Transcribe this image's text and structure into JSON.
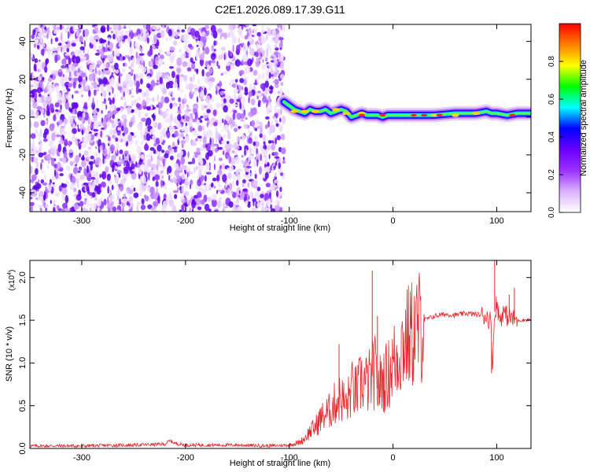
{
  "figure_title": "C2E1.2026.089.17.39.G11",
  "chart_data": [
    {
      "type": "heatmap",
      "xlabel": "Height of straight line (km)",
      "ylabel": "Frequency (Hz)",
      "xlim": [
        -350,
        133
      ],
      "ylim": [
        -50,
        49
      ],
      "xticks": [
        -300,
        -200,
        -100,
        0,
        100
      ],
      "yticks": [
        -40,
        -20,
        0,
        20,
        40
      ],
      "noise_region_x": [
        -350,
        -105
      ],
      "signal_ridge": {
        "x": [
          -105,
          -100,
          -95,
          -90,
          -85,
          -80,
          -75,
          -70,
          -65,
          -60,
          -55,
          -50,
          -45,
          -40,
          -35,
          -30,
          -25,
          -20,
          -15,
          -10,
          -5,
          0,
          10,
          20,
          40,
          60,
          80,
          90,
          95,
          100,
          110,
          120,
          133
        ],
        "freq": [
          8,
          6,
          4,
          3,
          2,
          4,
          3,
          3,
          4,
          2,
          3,
          4,
          3,
          0,
          1,
          2,
          1,
          1,
          1,
          0,
          1,
          1,
          1,
          1,
          1,
          2,
          2,
          3,
          2,
          2,
          1,
          2,
          2
        ]
      },
      "colorbar": {
        "label": "Normalized spectral amplitude",
        "range": [
          0,
          1
        ],
        "ticks": [
          "0.0",
          "0.2",
          "0.4",
          "0.6",
          "0.8"
        ],
        "colors": [
          "#ffffff",
          "#d9b3ff",
          "#9b30ff",
          "#6a00ff",
          "#0000ff",
          "#00ffff",
          "#00ff00",
          "#ffff00",
          "#ff7f00",
          "#ff0000"
        ]
      }
    },
    {
      "type": "line",
      "xlabel": "Height of straight line (km)",
      "ylabel": "SNR (10 * v/v)",
      "scale_label": "(x10",
      "scale_exponent": "4",
      "series_color": "#e8262b",
      "xlim": [
        -350,
        133
      ],
      "ylim": [
        0,
        2.2
      ],
      "xticks": [
        -300,
        -200,
        -100,
        0,
        100
      ],
      "ytick_labels": [
        "0.0",
        "0.5",
        "1.0",
        "1.5",
        "2.0"
      ],
      "yticks": [
        0,
        0.5,
        1.0,
        1.5,
        2.0
      ],
      "x": [
        -350,
        -300,
        -250,
        -220,
        -215,
        -210,
        -200,
        -150,
        -120,
        -100,
        -90,
        -85,
        -80,
        -75,
        -70,
        -65,
        -60,
        -55,
        -50,
        -45,
        -40,
        -35,
        -30,
        -25,
        -20,
        -17,
        -15,
        -10,
        -5,
        0,
        5,
        10,
        15,
        20,
        25,
        30,
        40,
        50,
        60,
        70,
        80,
        90,
        94,
        96,
        98,
        100,
        103,
        106,
        110,
        115,
        120,
        125,
        133
      ],
      "values": [
        0.03,
        0.03,
        0.04,
        0.05,
        0.09,
        0.06,
        0.04,
        0.04,
        0.03,
        0.04,
        0.07,
        0.12,
        0.2,
        0.25,
        0.35,
        0.4,
        0.45,
        0.55,
        0.6,
        0.5,
        0.7,
        0.65,
        0.8,
        0.75,
        0.85,
        0.9,
        0.7,
        0.8,
        0.85,
        1.0,
        1.1,
        1.25,
        1.3,
        1.35,
        1.42,
        1.5,
        1.55,
        1.57,
        1.56,
        1.58,
        1.57,
        1.55,
        1.5,
        1.0,
        1.6,
        1.7,
        1.5,
        1.6,
        1.55,
        1.52,
        1.5,
        1.5,
        1.51
      ]
    }
  ]
}
